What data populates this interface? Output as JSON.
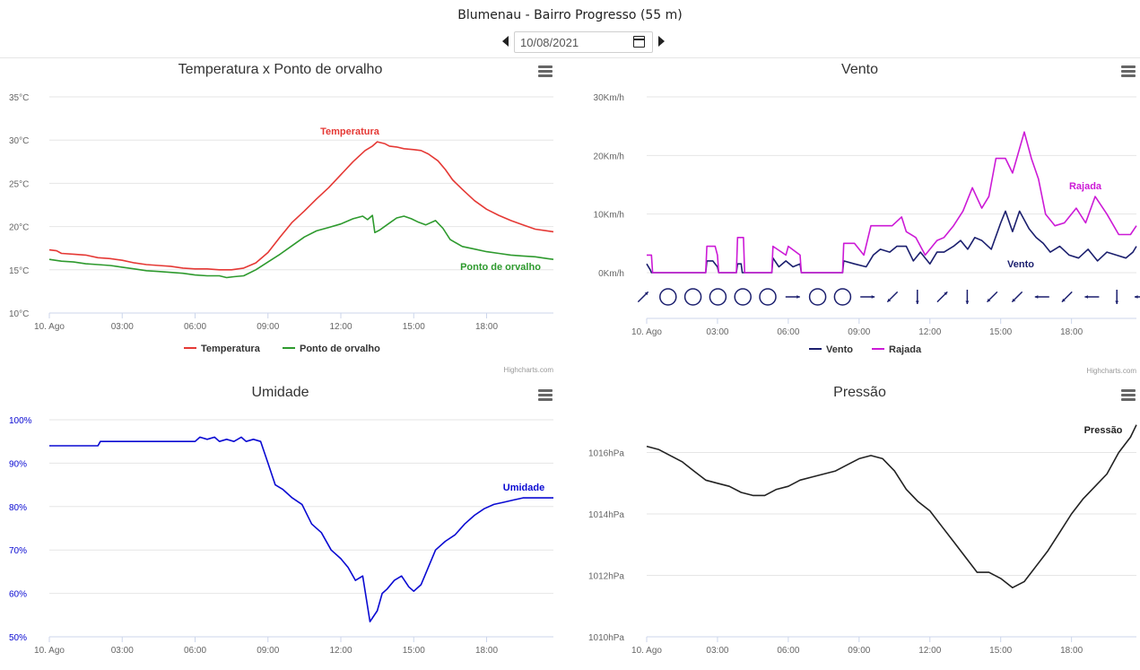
{
  "header": {
    "title": "Blumenau - Bairro Progresso (55 m)",
    "date_value": "10/08/2021",
    "prev_icon": "caret-left-icon",
    "next_icon": "caret-right-icon",
    "calendar_icon": "calendar-icon"
  },
  "credits": "Highcharts.com",
  "chart_data": [
    {
      "id": "temp",
      "type": "line",
      "title": "Temperatura x Ponto de orvalho",
      "x_ticks": [
        "10. Ago",
        "03:00",
        "06:00",
        "09:00",
        "12:00",
        "15:00",
        "18:00"
      ],
      "x_tick_hours": [
        0,
        3,
        6,
        9,
        12,
        15,
        18
      ],
      "xlim": [
        0,
        20.75
      ],
      "ylim": [
        10,
        35
      ],
      "y_ticks": [
        10,
        15,
        20,
        25,
        30,
        35
      ],
      "y_tick_labels": [
        "10°C",
        "15°C",
        "20°C",
        "25°C",
        "30°C",
        "35°C"
      ],
      "grid": true,
      "legend": "bottom-center",
      "series": [
        {
          "name": "Temperatura",
          "color": "#e53935",
          "label": "Temperatura",
          "x": [
            0,
            0.3,
            0.5,
            1,
            1.5,
            2,
            2.5,
            3,
            3.5,
            4,
            4.5,
            5,
            5.5,
            6,
            6.5,
            7,
            7.5,
            8,
            8.5,
            9,
            9.5,
            10,
            10.5,
            11,
            11.5,
            12,
            12.5,
            13,
            13.3,
            13.5,
            13.8,
            14,
            14.3,
            14.6,
            15,
            15.3,
            15.6,
            16,
            16.3,
            16.6,
            17,
            17.5,
            18,
            18.5,
            19,
            19.5,
            20,
            20.5,
            20.75
          ],
          "values": [
            17.3,
            17.2,
            16.9,
            16.8,
            16.7,
            16.4,
            16.3,
            16.1,
            15.8,
            15.6,
            15.5,
            15.4,
            15.2,
            15.1,
            15.1,
            15.0,
            15.0,
            15.2,
            15.8,
            17.0,
            18.8,
            20.5,
            21.8,
            23.2,
            24.5,
            26.0,
            27.5,
            28.8,
            29.3,
            29.8,
            29.6,
            29.3,
            29.2,
            29.0,
            28.9,
            28.8,
            28.4,
            27.6,
            26.6,
            25.4,
            24.3,
            23.0,
            22.0,
            21.3,
            20.7,
            20.2,
            19.7,
            19.5,
            19.4
          ]
        },
        {
          "name": "Ponto de orvalho",
          "color": "#2e9a2e",
          "label": "Ponto de orvalho",
          "x": [
            0,
            0.5,
            1,
            1.5,
            2,
            2.5,
            3,
            3.5,
            4,
            4.5,
            5,
            5.5,
            6,
            6.5,
            7,
            7.3,
            7.6,
            8,
            8.5,
            9,
            9.5,
            10,
            10.5,
            11,
            11.5,
            12,
            12.5,
            12.9,
            13.1,
            13.3,
            13.4,
            13.6,
            14,
            14.3,
            14.6,
            14.9,
            15.2,
            15.5,
            15.9,
            16.2,
            16.5,
            17,
            17.5,
            18,
            18.5,
            19,
            19.5,
            20,
            20.5,
            20.75
          ],
          "values": [
            16.2,
            16.0,
            15.9,
            15.7,
            15.6,
            15.5,
            15.3,
            15.1,
            14.9,
            14.8,
            14.7,
            14.6,
            14.4,
            14.3,
            14.3,
            14.1,
            14.2,
            14.3,
            15.0,
            15.9,
            16.8,
            17.8,
            18.8,
            19.5,
            19.9,
            20.3,
            20.9,
            21.2,
            20.8,
            21.3,
            19.3,
            19.6,
            20.4,
            21.0,
            21.2,
            20.9,
            20.5,
            20.2,
            20.7,
            19.8,
            18.5,
            17.7,
            17.4,
            17.1,
            16.9,
            16.7,
            16.6,
            16.5,
            16.3,
            16.2
          ]
        }
      ]
    },
    {
      "id": "wind",
      "type": "line",
      "title": "Vento",
      "x_ticks": [
        "10. Ago",
        "03:00",
        "06:00",
        "09:00",
        "12:00",
        "15:00",
        "18:00"
      ],
      "x_tick_hours": [
        0,
        3,
        6,
        9,
        12,
        15,
        18
      ],
      "xlim": [
        0,
        20.75
      ],
      "ylim": [
        0,
        30
      ],
      "y_ticks": [
        0,
        10,
        20,
        30
      ],
      "y_tick_labels": [
        "0Km/h",
        "10Km/h",
        "20Km/h",
        "30Km/h"
      ],
      "grid": true,
      "legend": "bottom-center",
      "series": [
        {
          "name": "Vento",
          "color": "#1b1f6e",
          "label": "Vento",
          "x": [
            0,
            0.15,
            0.2,
            2.5,
            2.55,
            2.8,
            3.0,
            3.05,
            3.8,
            3.85,
            4.0,
            4.05,
            5.3,
            5.35,
            5.6,
            5.9,
            6.2,
            6.5,
            6.55,
            8.3,
            8.35,
            8.8,
            9.3,
            9.6,
            9.9,
            10.3,
            10.6,
            11.0,
            11.3,
            11.6,
            12.0,
            12.3,
            12.6,
            13.0,
            13.3,
            13.6,
            13.9,
            14.2,
            14.6,
            15.0,
            15.2,
            15.5,
            15.8,
            16.2,
            16.5,
            16.8,
            17.1,
            17.5,
            17.9,
            18.3,
            18.7,
            19.1,
            19.5,
            19.9,
            20.3,
            20.6,
            20.75
          ],
          "values": [
            1.5,
            0.5,
            0,
            0,
            2,
            2,
            1,
            0,
            0,
            1.5,
            1.5,
            0,
            0,
            2.5,
            1.0,
            2.0,
            1.0,
            1.5,
            0,
            0,
            2,
            1.5,
            1.0,
            3.0,
            4.0,
            3.5,
            4.5,
            4.5,
            2.0,
            3.5,
            1.5,
            3.5,
            3.5,
            4.5,
            5.5,
            4.0,
            6.0,
            5.5,
            4.0,
            8.5,
            10.5,
            7.0,
            10.5,
            7.5,
            6.0,
            5.0,
            3.5,
            4.5,
            3.0,
            2.5,
            4.0,
            2.0,
            3.5,
            3.0,
            2.5,
            3.5,
            4.5
          ]
        },
        {
          "name": "Rajada",
          "color": "#cc1ad6",
          "label": "Rajada",
          "x": [
            0,
            0.2,
            0.25,
            2.5,
            2.55,
            2.9,
            3.0,
            3.05,
            3.8,
            3.85,
            4.1,
            4.15,
            5.3,
            5.35,
            5.9,
            6.0,
            6.5,
            6.55,
            8.3,
            8.35,
            8.8,
            9.2,
            9.5,
            9.8,
            10.4,
            10.8,
            11.0,
            11.4,
            11.8,
            12.3,
            12.6,
            13.0,
            13.4,
            13.8,
            14.2,
            14.5,
            14.8,
            15.2,
            15.5,
            16.0,
            16.3,
            16.6,
            16.9,
            17.3,
            17.7,
            18.2,
            18.6,
            19.0,
            19.5,
            20.0,
            20.5,
            20.75
          ],
          "values": [
            3,
            3,
            0,
            0,
            4.5,
            4.5,
            3,
            0,
            0,
            6,
            6,
            0,
            0,
            4.5,
            3,
            4.5,
            3,
            0,
            0,
            5,
            5,
            3,
            8,
            8,
            8,
            9.5,
            7,
            6,
            3,
            5.5,
            6,
            8,
            10.5,
            14.5,
            11,
            13,
            19.5,
            19.5,
            17,
            24,
            19.5,
            16,
            10,
            8,
            8.5,
            11,
            8.5,
            13,
            10,
            6.5,
            6.5,
            8
          ]
        }
      ],
      "direction_row": [
        "arrow-ne",
        "calm",
        "calm",
        "calm",
        "calm",
        "calm",
        "arrow-e",
        "calm",
        "calm",
        "arrow-e",
        "arrow-sw",
        "arrow-s",
        "arrow-ne",
        "arrow-s",
        "arrow-sw",
        "arrow-sw",
        "arrow-w",
        "arrow-sw",
        "arrow-w",
        "arrow-s",
        "arrow-w"
      ]
    },
    {
      "id": "humidity",
      "type": "line",
      "title": "Umidade",
      "x_ticks": [
        "10. Ago",
        "03:00",
        "06:00",
        "09:00",
        "12:00",
        "15:00",
        "18:00"
      ],
      "x_tick_hours": [
        0,
        3,
        6,
        9,
        12,
        15,
        18
      ],
      "xlim": [
        0,
        20.75
      ],
      "ylim": [
        50,
        100
      ],
      "y_ticks": [
        50,
        60,
        70,
        80,
        90,
        100
      ],
      "y_tick_labels": [
        "50%",
        "60%",
        "70%",
        "80%",
        "90%",
        "100%"
      ],
      "grid": true,
      "legend": "none",
      "series": [
        {
          "name": "Umidade",
          "color": "#0a0ad2",
          "label": "Umidade",
          "x": [
            0,
            2,
            2.1,
            6.0,
            6.2,
            6.5,
            6.8,
            7.0,
            7.3,
            7.6,
            7.9,
            8.1,
            8.4,
            8.7,
            9.0,
            9.3,
            9.6,
            10.0,
            10.4,
            10.8,
            11.2,
            11.6,
            12.0,
            12.3,
            12.6,
            12.9,
            13.2,
            13.5,
            13.7,
            13.9,
            14.2,
            14.5,
            14.8,
            15.0,
            15.3,
            15.6,
            15.9,
            16.3,
            16.7,
            17.1,
            17.5,
            17.9,
            18.3,
            18.7,
            19.1,
            19.5,
            19.9,
            20.3,
            20.75
          ],
          "values": [
            94,
            94,
            95,
            95,
            96,
            95.5,
            96,
            95,
            95.5,
            95,
            96,
            95,
            95.5,
            95,
            90,
            85,
            84,
            82,
            80.5,
            76,
            74,
            70,
            68,
            66,
            63,
            64,
            53.5,
            56,
            60,
            61,
            63,
            64,
            61.5,
            60.5,
            62,
            66,
            70,
            72,
            73.5,
            76,
            78,
            79.5,
            80.5,
            81,
            81.5,
            82,
            82,
            82,
            82
          ]
        }
      ]
    },
    {
      "id": "pressure",
      "type": "line",
      "title": "Pressão",
      "x_ticks": [
        "10. Ago",
        "03:00",
        "06:00",
        "09:00",
        "12:00",
        "15:00",
        "18:00"
      ],
      "x_tick_hours": [
        0,
        3,
        6,
        9,
        12,
        15,
        18
      ],
      "xlim": [
        0,
        20.75
      ],
      "ylim": [
        1010,
        1018
      ],
      "y_ticks": [
        1010,
        1012,
        1014,
        1016
      ],
      "y_tick_labels": [
        "1010hPa",
        "1012hPa",
        "1014hPa",
        "1016hPa"
      ],
      "grid": true,
      "legend": "none",
      "series": [
        {
          "name": "Pressão",
          "color": "#222222",
          "label": "Pressão",
          "x": [
            0,
            0.5,
            1,
            1.5,
            2,
            2.5,
            3,
            3.5,
            4,
            4.5,
            5,
            5.5,
            6,
            6.5,
            7,
            7.5,
            8,
            8.5,
            9,
            9.5,
            10,
            10.5,
            11,
            11.5,
            12,
            12.5,
            13,
            13.5,
            14,
            14.5,
            15,
            15.5,
            16,
            16.5,
            17,
            17.5,
            18,
            18.5,
            19,
            19.5,
            20,
            20.5,
            20.75
          ],
          "values": [
            1016.2,
            1016.1,
            1015.9,
            1015.7,
            1015.4,
            1015.1,
            1015.0,
            1014.9,
            1014.7,
            1014.6,
            1014.6,
            1014.8,
            1014.9,
            1015.1,
            1015.2,
            1015.3,
            1015.4,
            1015.6,
            1015.8,
            1015.9,
            1015.8,
            1015.4,
            1014.8,
            1014.4,
            1014.1,
            1013.6,
            1013.1,
            1012.6,
            1012.1,
            1012.1,
            1011.9,
            1011.6,
            1011.8,
            1012.3,
            1012.8,
            1013.4,
            1014.0,
            1014.5,
            1014.9,
            1015.3,
            1016.0,
            1016.5,
            1016.9
          ]
        }
      ]
    }
  ]
}
